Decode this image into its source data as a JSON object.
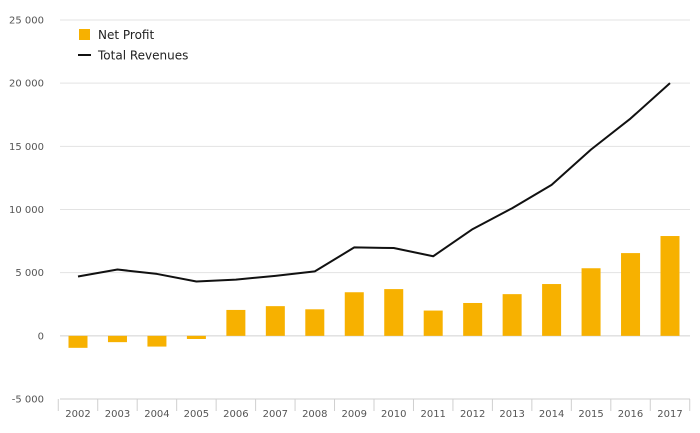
{
  "chart_data": {
    "type": "bar",
    "title": "",
    "xlabel": "",
    "ylabel": "",
    "ylim": [
      -5000,
      25000
    ],
    "yticks": [
      -5000,
      0,
      5000,
      10000,
      15000,
      20000,
      25000
    ],
    "ytick_labels": [
      "-5 000",
      "0",
      "5 000",
      "10 000",
      "15 000",
      "20 000",
      "25 000"
    ],
    "grid": true,
    "legend_position": "top-left",
    "categories": [
      "2002",
      "2003",
      "2004",
      "2005",
      "2006",
      "2007",
      "2008",
      "2009",
      "2010",
      "2011",
      "2012",
      "2013",
      "2014",
      "2015",
      "2016",
      "2017"
    ],
    "series": [
      {
        "name": "Net Profit",
        "type": "bar",
        "color": "#F7B100",
        "values": [
          -950,
          -500,
          -850,
          -250,
          2050,
          2350,
          2100,
          3450,
          3700,
          2000,
          2600,
          3300,
          4100,
          5350,
          6550,
          7900
        ]
      },
      {
        "name": "Total Revenues",
        "type": "line",
        "color": "#111111",
        "values": [
          4700,
          5250,
          4900,
          4300,
          4450,
          4750,
          5100,
          7000,
          6950,
          6300,
          8450,
          10100,
          11950,
          14750,
          17200,
          20000
        ]
      }
    ]
  }
}
